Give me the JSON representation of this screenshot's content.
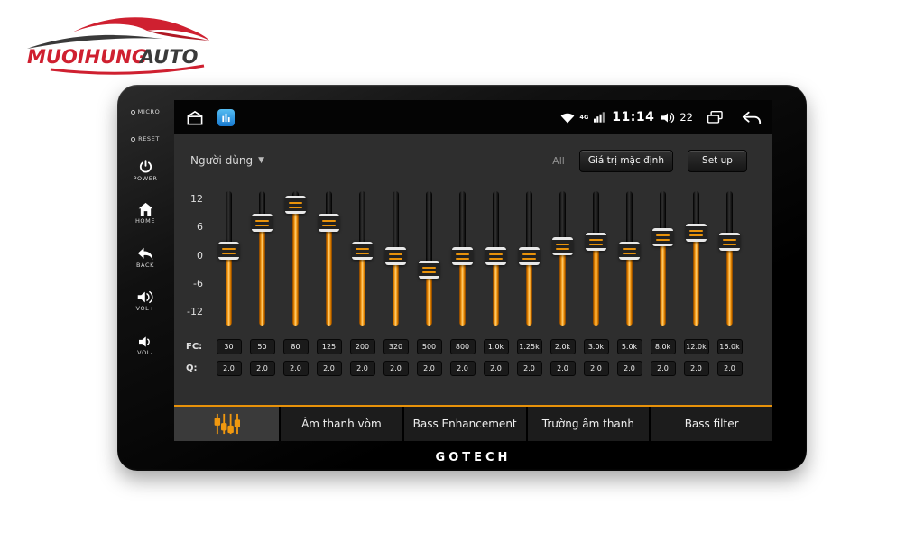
{
  "branding": {
    "logo_primary": "MUOIHUNG",
    "logo_secondary": "AUTO",
    "device_brand": "GOTECH"
  },
  "side_panel": {
    "buttons": [
      {
        "id": "micro",
        "label": "MICRO",
        "icon": "led-dot-icon"
      },
      {
        "id": "reset",
        "label": "RESET",
        "icon": "led-dot-icon"
      },
      {
        "id": "power",
        "label": "POWER",
        "icon": "power-icon"
      },
      {
        "id": "home",
        "label": "HOME",
        "icon": "home-icon"
      },
      {
        "id": "back",
        "label": "BACK",
        "icon": "back-arrow-icon"
      },
      {
        "id": "vol-up",
        "label": "VOL+",
        "icon": "speaker-loud-icon"
      },
      {
        "id": "vol-down",
        "label": "VOL-",
        "icon": "speaker-icon"
      }
    ]
  },
  "status_bar": {
    "left_icons": [
      "home-outline-icon",
      "equalizer-app-icon"
    ],
    "network_label": "4G",
    "time": "11:14",
    "volume": "22"
  },
  "header": {
    "profile": "Người dùng",
    "all_label": "All",
    "default_button": "Giá trị mặc định",
    "setup_button": "Set up"
  },
  "equalizer": {
    "scale_labels": [
      "12",
      "6",
      "0",
      "-6",
      "-12"
    ],
    "gain_range": [
      -12,
      12
    ],
    "fc_label": "FC:",
    "q_label": "Q:",
    "bands": [
      {
        "fc": "30",
        "gain": 1,
        "q": "2.0"
      },
      {
        "fc": "50",
        "gain": 7,
        "q": "2.0"
      },
      {
        "fc": "80",
        "gain": 11,
        "q": "2.0"
      },
      {
        "fc": "125",
        "gain": 7,
        "q": "2.0"
      },
      {
        "fc": "200",
        "gain": 1,
        "q": "2.0"
      },
      {
        "fc": "320",
        "gain": 0,
        "q": "2.0"
      },
      {
        "fc": "500",
        "gain": -3,
        "q": "2.0"
      },
      {
        "fc": "800",
        "gain": 0,
        "q": "2.0"
      },
      {
        "fc": "1.0k",
        "gain": 0,
        "q": "2.0"
      },
      {
        "fc": "1.25k",
        "gain": 0,
        "q": "2.0"
      },
      {
        "fc": "2.0k",
        "gain": 2,
        "q": "2.0"
      },
      {
        "fc": "3.0k",
        "gain": 3,
        "q": "2.0"
      },
      {
        "fc": "5.0k",
        "gain": 1,
        "q": "2.0"
      },
      {
        "fc": "8.0k",
        "gain": 4,
        "q": "2.0"
      },
      {
        "fc": "12.0k",
        "gain": 5,
        "q": "2.0"
      },
      {
        "fc": "16.0k",
        "gain": 3,
        "q": "2.0"
      }
    ]
  },
  "tabs": [
    {
      "id": "equalizer",
      "label": "",
      "icon": "equalizer-sliders-icon",
      "active": true
    },
    {
      "id": "surround",
      "label": "Âm thanh vòm",
      "active": false
    },
    {
      "id": "bass-enhancement",
      "label": "Bass Enhancement",
      "active": false
    },
    {
      "id": "sound-field",
      "label": "Trường âm thanh",
      "active": false
    },
    {
      "id": "bass-filter",
      "label": "Bass filter",
      "active": false
    }
  ],
  "colors": {
    "accent_orange": "#E8920A",
    "screen_bg": "#2E2E2E",
    "status_bar_bg": "#040404",
    "app_icon_blue": "#1779D0",
    "logo_red": "#CF2030"
  }
}
